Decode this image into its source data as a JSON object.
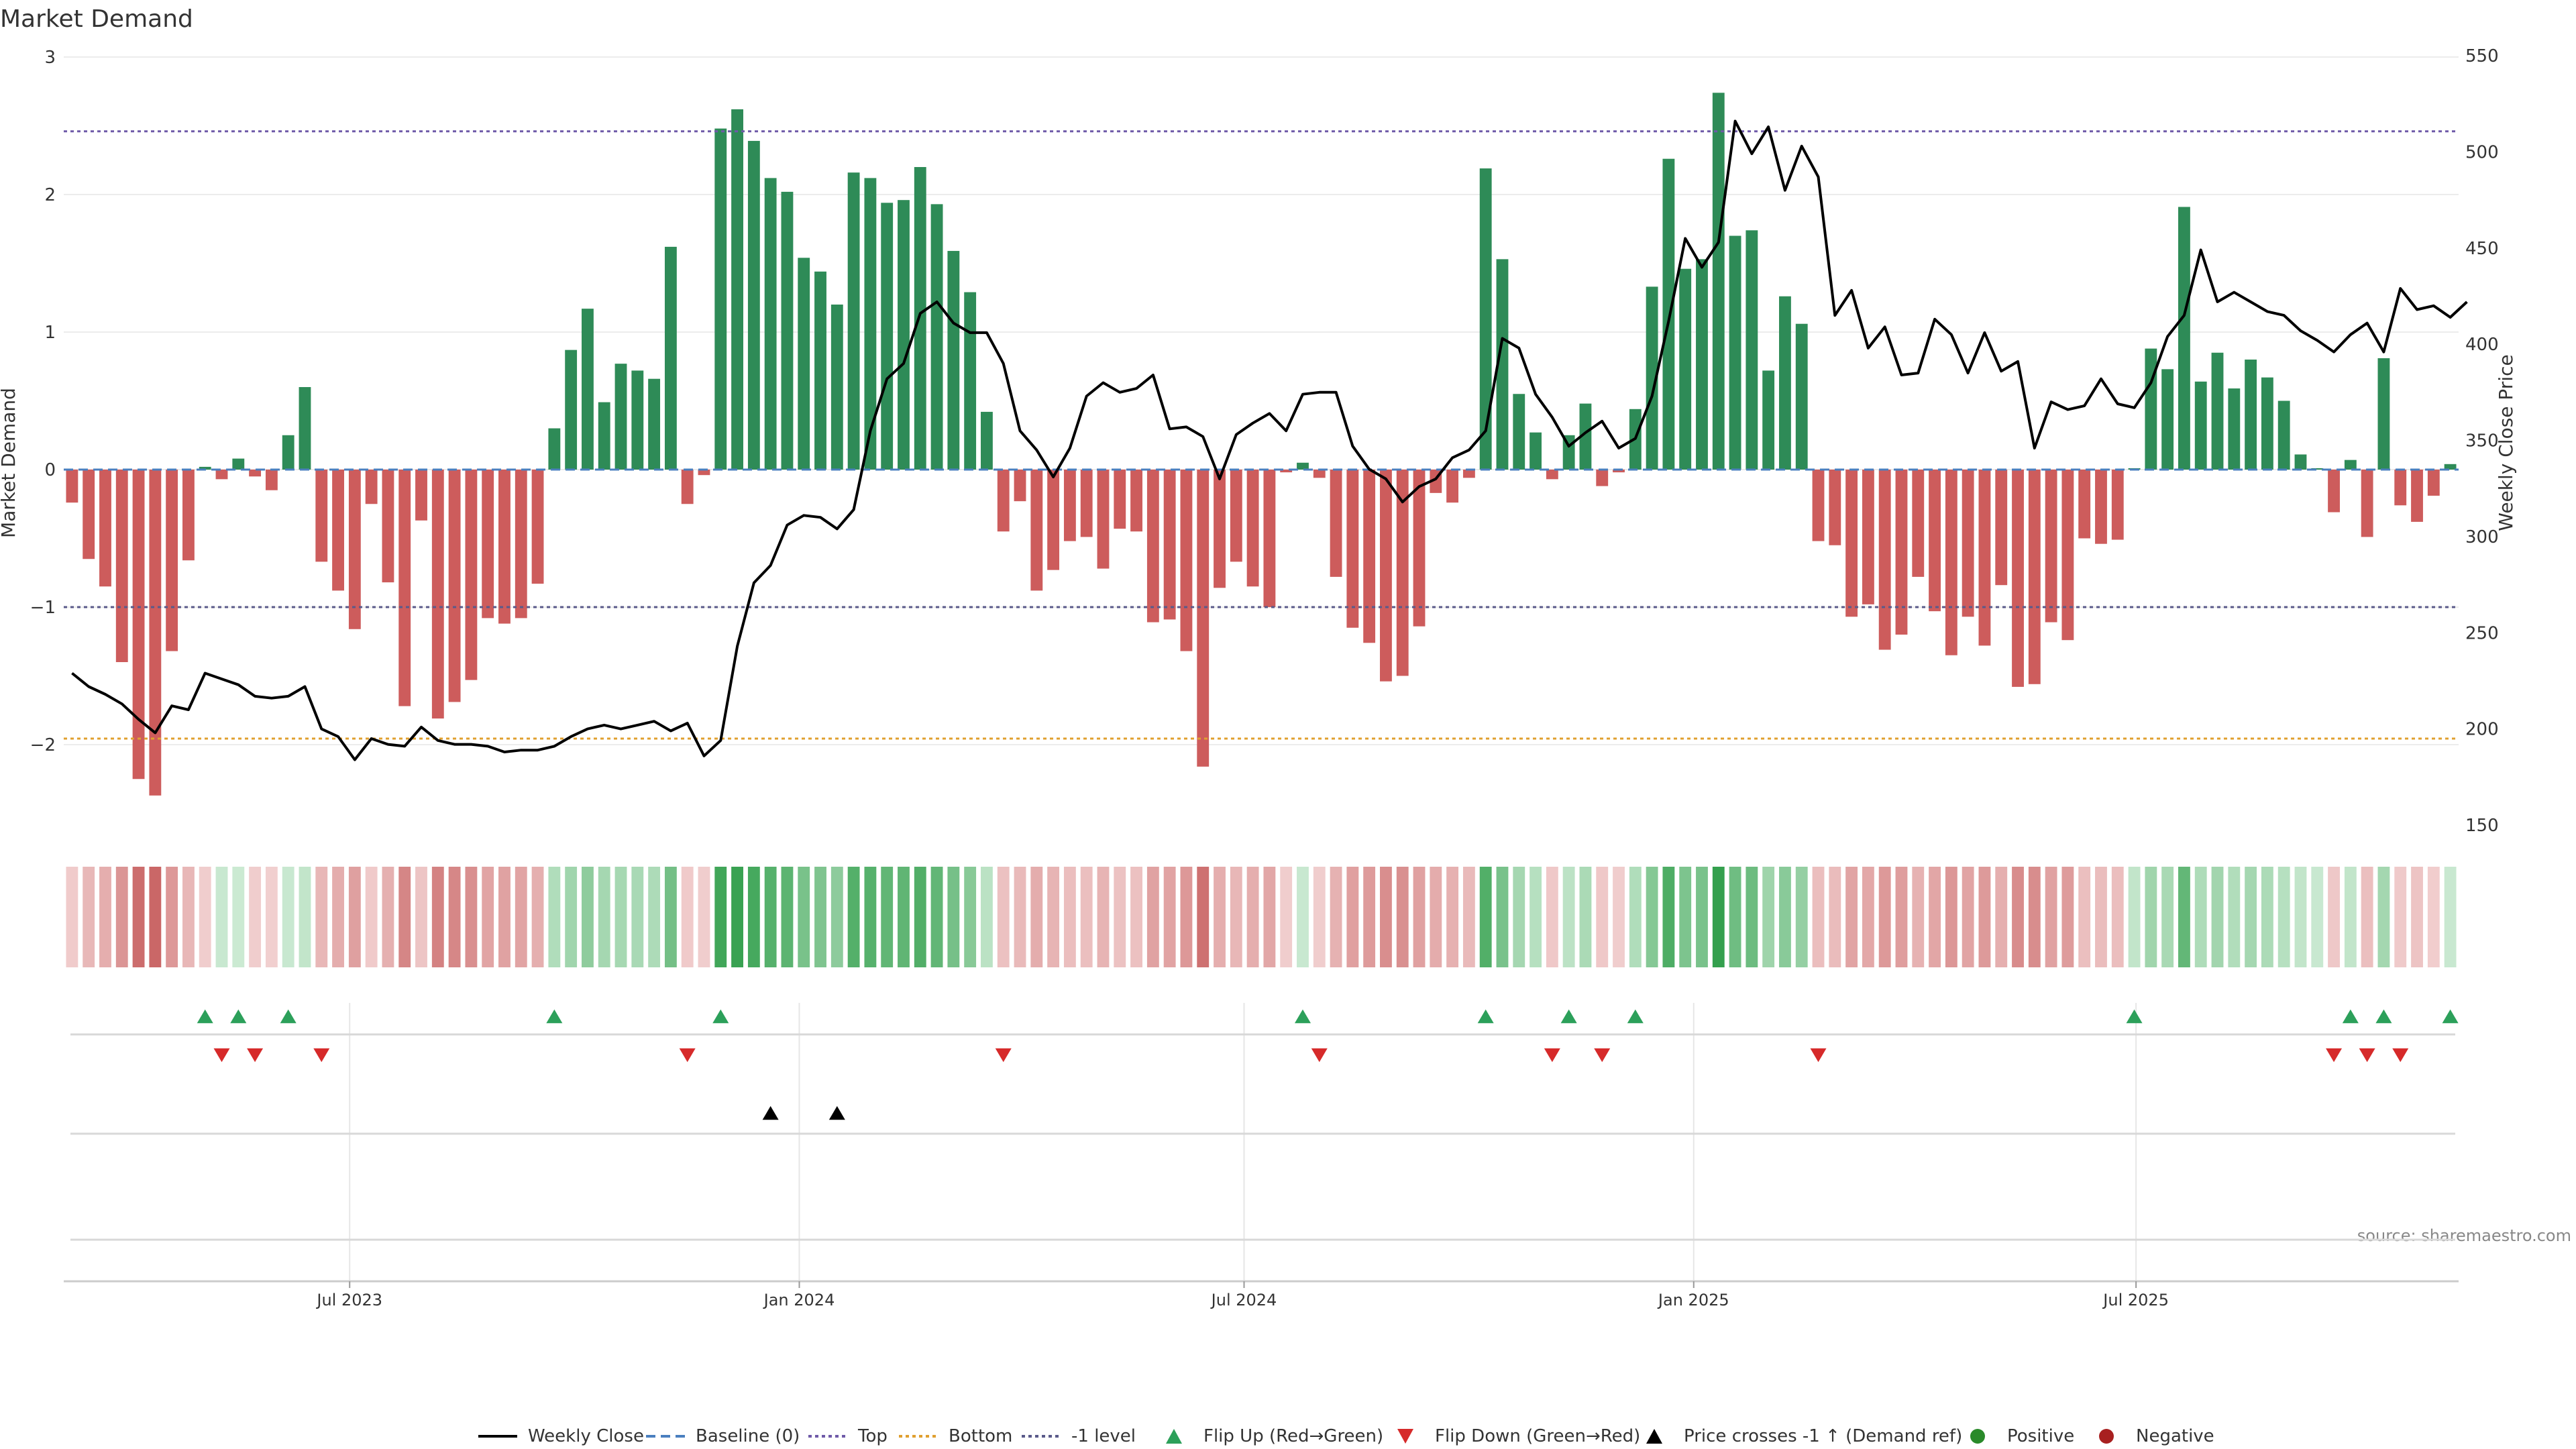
{
  "chart_data": {
    "type": "bar",
    "title": "Market Demand",
    "ylabel": "Market Demand",
    "y2label": "Weekly Close Price",
    "ylim": [
      -2.62,
      3.0
    ],
    "y2lim": [
      150,
      550
    ],
    "yticks": [
      3,
      2,
      1,
      0,
      -1,
      -2
    ],
    "ytick_labels": [
      "3",
      "2",
      "1",
      "0",
      "−1",
      "−2"
    ],
    "y2ticks": [
      550,
      500,
      450,
      400,
      350,
      300,
      250,
      200,
      150
    ],
    "reference_lines": {
      "top": 2.46,
      "bottom_price": 195,
      "minus_one": -1.0,
      "baseline": 0
    },
    "x_start": "2023-03-06",
    "x_end": "2025-11-10",
    "x_ticks": [
      {
        "date": "2023-07-01",
        "label": "Jul 2023"
      },
      {
        "date": "2024-01-01",
        "label": "Jan 2024"
      },
      {
        "date": "2024-07-01",
        "label": "Jul 2024"
      },
      {
        "date": "2025-01-01",
        "label": "Jan 2025"
      },
      {
        "date": "2025-07-01",
        "label": "Jul 2025"
      }
    ],
    "demand": [
      -0.24,
      -0.65,
      -0.85,
      -1.4,
      -2.25,
      -2.37,
      -1.32,
      -0.66,
      0.02,
      -0.07,
      0.08,
      -0.05,
      -0.15,
      0.25,
      0.6,
      -0.67,
      -0.88,
      -1.16,
      -0.25,
      -0.82,
      -1.72,
      -0.37,
      -1.81,
      -1.69,
      -1.53,
      -1.08,
      -1.12,
      -1.08,
      -0.83,
      0.3,
      0.87,
      1.17,
      0.49,
      0.77,
      0.72,
      0.66,
      1.62,
      -0.25,
      -0.04,
      2.48,
      2.62,
      2.39,
      2.12,
      2.02,
      1.54,
      1.44,
      1.2,
      2.16,
      2.12,
      1.94,
      1.96,
      2.2,
      1.93,
      1.59,
      1.29,
      0.42,
      -0.45,
      -0.23,
      -0.88,
      -0.73,
      -0.52,
      -0.49,
      -0.72,
      -0.43,
      -0.45,
      -1.11,
      -1.09,
      -1.32,
      -2.16,
      -0.86,
      -0.67,
      -0.85,
      -1.0,
      -0.02,
      0.05,
      -0.06,
      -0.78,
      -1.15,
      -1.26,
      -1.54,
      -1.5,
      -1.14,
      -0.17,
      -0.24,
      -0.06,
      2.19,
      1.53,
      0.55,
      0.27,
      -0.07,
      0.25,
      0.48,
      -0.12,
      -0.02,
      0.44,
      1.33,
      2.26,
      1.46,
      1.53,
      2.74,
      1.7,
      1.74,
      0.72,
      1.26,
      1.06,
      -0.52,
      -0.55,
      -1.07,
      -0.98,
      -1.31,
      -1.2,
      -0.78,
      -1.03,
      -1.35,
      -1.07,
      -1.28,
      -0.84,
      -1.58,
      -1.56,
      -1.11,
      -1.24,
      -0.5,
      -0.54,
      -0.51,
      0.01,
      0.88,
      0.73,
      1.91,
      0.64,
      0.85,
      0.59,
      0.8,
      0.67,
      0.5,
      0.11,
      0.01,
      -0.31,
      0.07,
      -0.49,
      0.81,
      -0.26,
      -0.38,
      -0.19,
      0.04
    ],
    "close": [
      229,
      222,
      218,
      213,
      205,
      198,
      212,
      210,
      229,
      226,
      223,
      217,
      216,
      217,
      222,
      200,
      196,
      184,
      195,
      192,
      191,
      201,
      194,
      192,
      192,
      191,
      188,
      189,
      189,
      191,
      196,
      200,
      202,
      200,
      202,
      204,
      199,
      203,
      186,
      194,
      243,
      276,
      285,
      306,
      311,
      310,
      304,
      314,
      355,
      382,
      390,
      416,
      422,
      411,
      406,
      406,
      390,
      355,
      345,
      331,
      346,
      373,
      380,
      375,
      377,
      384,
      356,
      357,
      352,
      330,
      353,
      359,
      364,
      355,
      374,
      375,
      375,
      347,
      335,
      330,
      318,
      326,
      330,
      341,
      345,
      355,
      403,
      398,
      374,
      362,
      347,
      354,
      360,
      346,
      351,
      373,
      412,
      455,
      440,
      453,
      516,
      499,
      513,
      480,
      503,
      487,
      415,
      428,
      398,
      409,
      384,
      385,
      413,
      405,
      385,
      406,
      386,
      391,
      346,
      370,
      366,
      368,
      382,
      369,
      367,
      380,
      404,
      415,
      449,
      422,
      427,
      422,
      417,
      415,
      407,
      402,
      396,
      405,
      411,
      396,
      429,
      418,
      420,
      414,
      422
    ],
    "color_strip": [
      -0.24,
      -0.65,
      -0.85,
      -1.4,
      -2.25,
      -2.37,
      -1.32,
      -0.66,
      -0.2,
      0.2,
      0.15,
      -0.2,
      -0.15,
      0.2,
      0.3,
      -0.67,
      -0.88,
      -1.16,
      -0.25,
      -0.82,
      -1.72,
      -0.37,
      -1.81,
      -1.69,
      -1.53,
      -1.08,
      -1.12,
      -1.08,
      -0.83,
      0.6,
      0.87,
      1.17,
      0.8,
      0.77,
      0.72,
      0.66,
      1.62,
      -0.25,
      -0.2,
      2.48,
      2.62,
      2.39,
      2.12,
      2.02,
      1.54,
      1.44,
      1.2,
      2.16,
      2.12,
      1.94,
      1.96,
      2.2,
      1.93,
      1.59,
      1.29,
      0.42,
      -0.45,
      -0.6,
      -0.88,
      -0.73,
      -0.52,
      -0.49,
      -0.72,
      -0.43,
      -0.45,
      -1.11,
      -1.09,
      -1.32,
      -2.16,
      -0.86,
      -0.67,
      -0.85,
      -1.0,
      -0.2,
      0.2,
      -0.2,
      -0.78,
      -1.15,
      -1.26,
      -1.54,
      -1.5,
      -1.14,
      -0.9,
      -0.8,
      -0.6,
      2.19,
      1.53,
      0.8,
      0.5,
      -0.3,
      0.4,
      0.7,
      -0.3,
      -0.2,
      0.6,
      1.33,
      2.26,
      1.46,
      1.53,
      2.74,
      1.7,
      1.74,
      0.9,
      1.26,
      1.06,
      -0.52,
      -0.55,
      -1.07,
      -0.98,
      -1.31,
      -1.2,
      -0.78,
      -1.03,
      -1.35,
      -1.07,
      -1.28,
      -0.84,
      -1.58,
      -1.56,
      -1.11,
      -1.24,
      -0.5,
      -0.54,
      -0.51,
      0.3,
      0.88,
      0.73,
      1.91,
      0.64,
      0.85,
      0.59,
      0.8,
      0.67,
      0.5,
      0.3,
      0.2,
      -0.31,
      0.3,
      -0.49,
      0.81,
      -0.26,
      -0.38,
      -0.19,
      0.2
    ],
    "flip_up_weeks": [
      8,
      10,
      13,
      29,
      39,
      74,
      85,
      90,
      94,
      124,
      137,
      139,
      143
    ],
    "flip_down_weeks": [
      9,
      11,
      15,
      37,
      56,
      75,
      89,
      92,
      105,
      136,
      138,
      140
    ],
    "price_cross_weeks": [
      42,
      46
    ],
    "legend": {
      "position": "bottom",
      "items": [
        {
          "label": "Weekly Close",
          "marker": "line",
          "color": "#000000"
        },
        {
          "label": "Baseline (0)",
          "marker": "dash",
          "color": "#4a7fbf"
        },
        {
          "label": "Top",
          "marker": "dot",
          "color": "#6f5aa8"
        },
        {
          "label": "Bottom",
          "marker": "dot",
          "color": "#e0a030"
        },
        {
          "label": "-1 level",
          "marker": "dot",
          "color": "#5a5a8a"
        },
        {
          "label": "Flip Up (Red→Green)",
          "marker": "triangle-up",
          "color": "#2ca05a"
        },
        {
          "label": "Flip Down (Green→Red)",
          "marker": "triangle-down",
          "color": "#d62a2a"
        },
        {
          "label": "Price crosses -1 ↑ (Demand ref)",
          "marker": "triangle-up",
          "color": "#000000"
        },
        {
          "label": "Positive",
          "marker": "circle",
          "color": "#2a8a2a"
        },
        {
          "label": "Negative",
          "marker": "circle",
          "color": "#a82020"
        }
      ]
    },
    "source": "source: sharemaestro.com",
    "colors": {
      "positive_bar": "#2e8b57",
      "negative_bar": "#cd5c5c",
      "line": "#000000"
    }
  }
}
